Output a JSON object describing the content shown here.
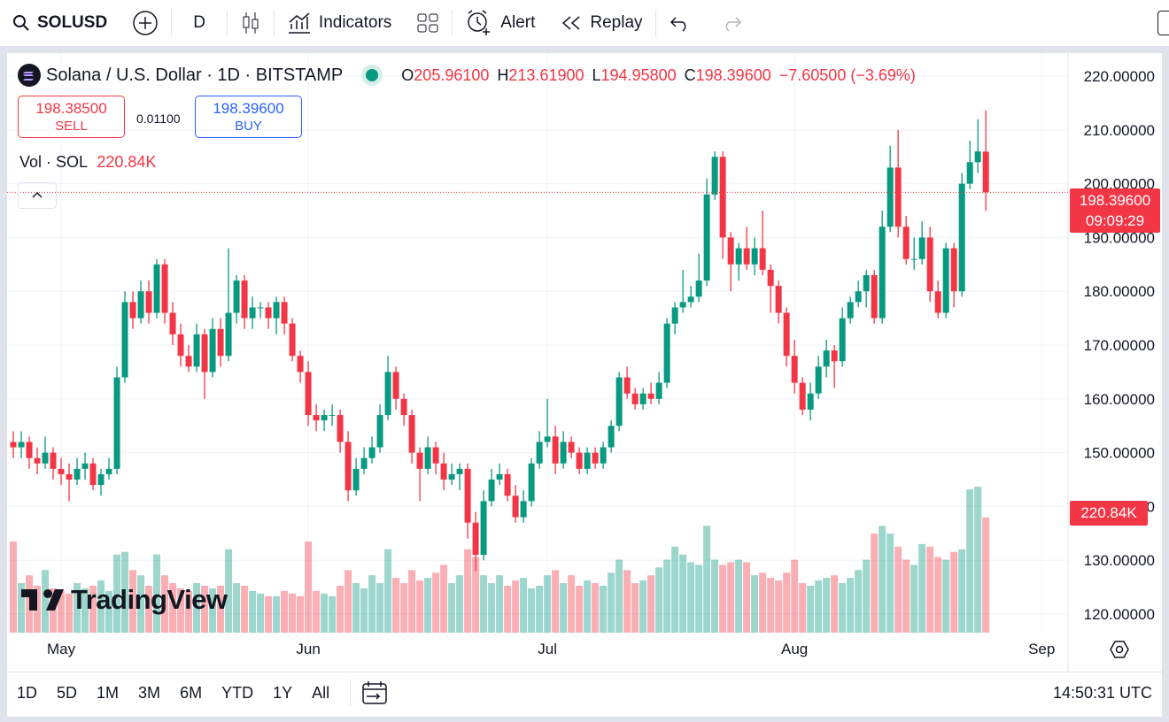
{
  "toolbar": {
    "symbol": "SOLUSD",
    "interval": "D",
    "indicators": "Indicators",
    "alert": "Alert",
    "replay": "Replay"
  },
  "legend": {
    "title": "Solana / U.S. Dollar · 1D · BITSTAMP",
    "o_key": "O",
    "o": "205.96100",
    "h_key": "H",
    "h": "213.61900",
    "l_key": "L",
    "l": "194.95800",
    "c_key": "C",
    "c": "198.39600",
    "change": "−7.60500 (−3.69%)"
  },
  "trade": {
    "sell_price": "198.38500",
    "sell": "SELL",
    "spread": "0.01100",
    "buy_price": "198.39600",
    "buy": "BUY"
  },
  "volume_legend": {
    "label": "Vol · SOL",
    "value": "220.84K"
  },
  "price_tag": {
    "price": "198.39600",
    "countdown": "09:09:29"
  },
  "volume_tag": "220.84K",
  "logo": "TradingView",
  "ranges": [
    "1D",
    "5D",
    "1M",
    "3M",
    "6M",
    "YTD",
    "1Y",
    "All"
  ],
  "clock": "14:50:31 UTC",
  "chart_data": {
    "type": "candlestick",
    "up_color": "#089981",
    "down_color": "#f23645",
    "ohlc": [
      [
        152,
        154,
        149,
        151
      ],
      [
        151,
        154,
        149,
        152
      ],
      [
        152,
        153,
        147,
        149
      ],
      [
        149,
        151,
        146,
        148
      ],
      [
        148,
        153,
        147,
        150
      ],
      [
        150,
        151,
        145,
        147
      ],
      [
        147,
        149,
        144,
        146
      ],
      [
        146,
        148,
        141,
        145
      ],
      [
        145,
        149,
        144,
        147
      ],
      [
        147,
        150,
        145,
        148
      ],
      [
        148,
        149,
        143,
        144
      ],
      [
        144,
        147,
        142,
        146
      ],
      [
        146,
        149,
        145,
        147
      ],
      [
        147,
        166,
        146,
        164
      ],
      [
        164,
        180,
        163,
        178
      ],
      [
        178,
        180,
        173,
        175
      ],
      [
        175,
        182,
        174,
        180
      ],
      [
        180,
        182,
        174,
        176
      ],
      [
        176,
        186,
        175,
        185
      ],
      [
        185,
        186,
        174,
        176
      ],
      [
        176,
        178,
        170,
        172
      ],
      [
        172,
        174,
        166,
        168
      ],
      [
        168,
        170,
        165,
        166
      ],
      [
        166,
        174,
        165,
        172
      ],
      [
        172,
        173,
        160,
        165
      ],
      [
        165,
        175,
        164,
        173
      ],
      [
        173,
        175,
        166,
        168
      ],
      [
        168,
        188,
        167,
        176
      ],
      [
        176,
        183,
        174,
        182
      ],
      [
        182,
        183,
        173,
        175
      ],
      [
        175,
        179,
        173,
        177
      ],
      [
        177,
        178,
        175,
        177
      ],
      [
        177,
        178,
        173,
        175
      ],
      [
        175,
        179,
        172,
        178
      ],
      [
        178,
        179,
        172,
        174
      ],
      [
        174,
        175,
        167,
        168
      ],
      [
        168,
        169,
        163,
        165
      ],
      [
        165,
        167,
        155,
        157
      ],
      [
        157,
        159,
        154,
        156
      ],
      [
        156,
        158,
        154,
        157
      ],
      [
        157,
        159,
        155,
        157
      ],
      [
        157,
        158,
        150,
        152
      ],
      [
        152,
        154,
        141,
        143
      ],
      [
        143,
        149,
        142,
        147
      ],
      [
        147,
        151,
        146,
        149
      ],
      [
        149,
        153,
        148,
        151
      ],
      [
        151,
        159,
        150,
        157
      ],
      [
        157,
        168,
        156,
        165
      ],
      [
        165,
        166,
        158,
        160
      ],
      [
        160,
        161,
        155,
        157
      ],
      [
        157,
        158,
        148,
        150
      ],
      [
        150,
        151,
        141,
        147
      ],
      [
        147,
        153,
        146,
        151
      ],
      [
        151,
        152,
        146,
        148
      ],
      [
        148,
        150,
        143,
        145
      ],
      [
        145,
        148,
        144,
        146
      ],
      [
        146,
        148,
        143,
        147
      ],
      [
        147,
        148,
        134,
        137
      ],
      [
        137,
        139,
        128,
        131
      ],
      [
        131,
        143,
        130,
        141
      ],
      [
        141,
        147,
        140,
        145
      ],
      [
        145,
        148,
        144,
        146
      ],
      [
        146,
        147,
        141,
        142
      ],
      [
        142,
        144,
        137,
        138
      ],
      [
        138,
        143,
        137,
        141
      ],
      [
        141,
        149,
        140,
        148
      ],
      [
        148,
        154,
        147,
        152
      ],
      [
        152,
        160,
        151,
        153
      ],
      [
        153,
        155,
        146,
        148
      ],
      [
        148,
        154,
        147,
        152
      ],
      [
        152,
        153,
        149,
        150
      ],
      [
        150,
        151,
        146,
        147
      ],
      [
        147,
        151,
        146,
        150
      ],
      [
        150,
        151,
        147,
        148
      ],
      [
        148,
        152,
        147,
        151
      ],
      [
        151,
        156,
        150,
        155
      ],
      [
        155,
        165,
        154,
        164
      ],
      [
        164,
        166,
        160,
        161
      ],
      [
        161,
        162,
        158,
        159
      ],
      [
        159,
        162,
        158,
        161
      ],
      [
        161,
        163,
        159,
        160
      ],
      [
        160,
        165,
        159,
        163
      ],
      [
        163,
        175,
        162,
        174
      ],
      [
        174,
        178,
        172,
        177
      ],
      [
        177,
        184,
        176,
        178
      ],
      [
        178,
        181,
        177,
        179
      ],
      [
        179,
        187,
        178,
        182
      ],
      [
        182,
        201,
        181,
        198
      ],
      [
        198,
        206,
        197,
        205
      ],
      [
        205,
        206,
        186,
        190
      ],
      [
        190,
        191,
        180,
        185
      ],
      [
        185,
        189,
        182,
        188
      ],
      [
        188,
        192,
        184,
        185
      ],
      [
        185,
        190,
        183,
        188
      ],
      [
        188,
        195,
        183,
        184
      ],
      [
        184,
        185,
        176,
        181
      ],
      [
        181,
        182,
        174,
        176
      ],
      [
        176,
        177,
        166,
        168
      ],
      [
        168,
        171,
        161,
        163
      ],
      [
        163,
        164,
        157,
        158
      ],
      [
        158,
        163,
        156,
        161
      ],
      [
        161,
        168,
        160,
        166
      ],
      [
        166,
        171,
        164,
        169
      ],
      [
        169,
        170,
        162,
        167
      ],
      [
        167,
        177,
        166,
        175
      ],
      [
        175,
        179,
        174,
        178
      ],
      [
        178,
        182,
        177,
        180
      ],
      [
        180,
        184,
        177,
        183
      ],
      [
        183,
        184,
        174,
        175
      ],
      [
        175,
        195,
        174,
        192
      ],
      [
        192,
        207,
        191,
        203
      ],
      [
        203,
        210,
        190,
        192
      ],
      [
        192,
        194,
        185,
        186
      ],
      [
        186,
        190,
        184,
        186
      ],
      [
        186,
        193,
        185,
        190
      ],
      [
        190,
        192,
        178,
        180
      ],
      [
        180,
        182,
        175,
        176
      ],
      [
        176,
        189,
        175,
        188
      ],
      [
        188,
        189,
        177,
        180
      ],
      [
        180,
        202,
        179,
        200
      ],
      [
        200,
        208,
        199,
        204
      ],
      [
        204,
        212,
        202,
        206
      ],
      [
        205.961,
        213.619,
        194.958,
        198.396
      ]
    ],
    "volume": [
      175,
      95,
      110,
      90,
      120,
      85,
      80,
      75,
      95,
      85,
      90,
      100,
      80,
      150,
      155,
      120,
      110,
      90,
      150,
      110,
      95,
      85,
      80,
      95,
      90,
      85,
      90,
      160,
      95,
      90,
      80,
      75,
      70,
      70,
      80,
      75,
      70,
      175,
      80,
      75,
      70,
      90,
      120,
      95,
      85,
      110,
      95,
      160,
      105,
      95,
      120,
      100,
      105,
      115,
      130,
      95,
      110,
      160,
      145,
      110,
      95,
      110,
      90,
      100,
      105,
      85,
      90,
      110,
      120,
      95,
      110,
      90,
      100,
      95,
      90,
      115,
      140,
      120,
      95,
      100,
      110,
      125,
      140,
      165,
      150,
      135,
      130,
      205,
      140,
      130,
      135,
      140,
      135,
      110,
      115,
      105,
      100,
      115,
      140,
      95,
      90,
      100,
      105,
      110,
      95,
      105,
      120,
      140,
      190,
      205,
      190,
      165,
      140,
      130,
      170,
      165,
      145,
      140,
      155,
      160,
      275,
      280,
      220.84
    ],
    "xlim": [
      -0.78,
      132.2
    ],
    "xticks": [
      {
        "value": 6,
        "label": "May"
      },
      {
        "value": 37,
        "label": "Jun"
      },
      {
        "value": 67,
        "label": "Jul"
      },
      {
        "value": 98,
        "label": "Aug"
      },
      {
        "value": 129,
        "label": "Sep"
      }
    ],
    "ylim": [
      116.55,
      224.28
    ],
    "yticks": [
      {
        "value": 120,
        "label": "120.00000"
      },
      {
        "value": 130,
        "label": "130.00000"
      },
      {
        "value": 140,
        "label": "140.00000"
      },
      {
        "value": 150,
        "label": "150.00000"
      },
      {
        "value": 160,
        "label": "160.00000"
      },
      {
        "value": 170,
        "label": "170.00000"
      },
      {
        "value": 180,
        "label": "180.00000"
      },
      {
        "value": 190,
        "label": "190.00000"
      },
      {
        "value": 200,
        "label": "200.00000"
      },
      {
        "value": 210,
        "label": "210.00000"
      },
      {
        "value": 220,
        "label": "220.00000"
      }
    ],
    "y2lim": [
      0,
      1112
    ],
    "grid": true
  }
}
